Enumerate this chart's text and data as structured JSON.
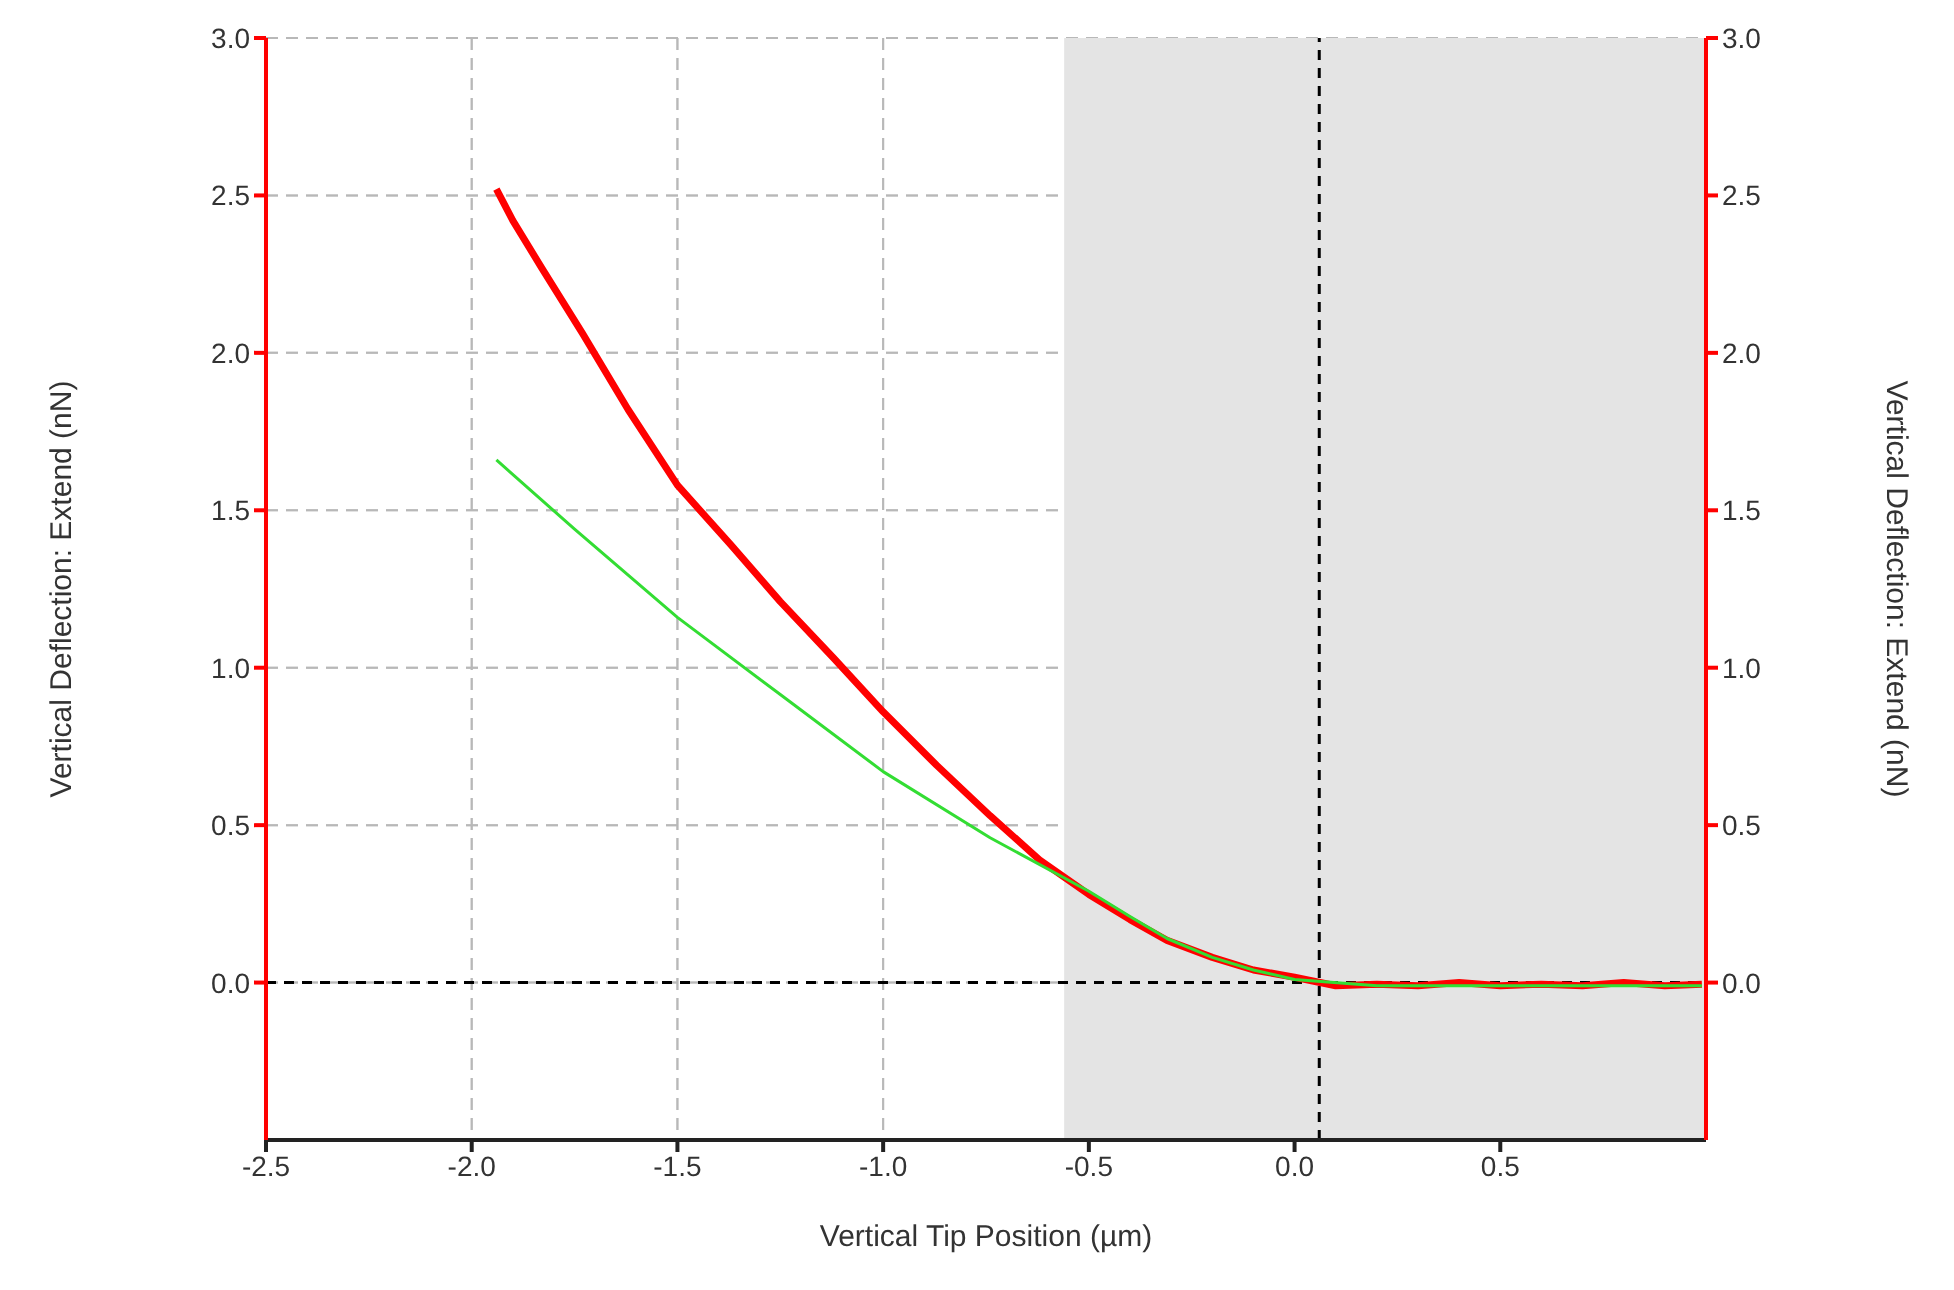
{
  "chart_data": {
    "type": "line",
    "xlabel": "Vertical Tip Position (µm)",
    "ylabel": "Vertical Deflection: Extend (nN)",
    "y2label": "Vertical Deflection: Extend (nN)",
    "series": [
      {
        "color": "#ff0000",
        "x": [
          -1.94,
          -1.9,
          -1.83,
          -1.73,
          -1.62,
          -1.5,
          -1.37,
          -1.25,
          -1.12,
          -1.0,
          -0.87,
          -0.74,
          -0.62,
          -0.5,
          -0.4,
          -0.31,
          -0.2,
          -0.1,
          0.0,
          0.1,
          0.2,
          0.3,
          0.4,
          0.5,
          0.6,
          0.7,
          0.8,
          0.9,
          0.99
        ],
        "values": [
          2.52,
          2.42,
          2.27,
          2.06,
          1.82,
          1.58,
          1.39,
          1.21,
          1.03,
          0.86,
          0.69,
          0.53,
          0.39,
          0.28,
          0.2,
          0.134,
          0.08,
          0.04,
          0.017,
          -0.01,
          -0.005,
          -0.01,
          0.0,
          -0.01,
          -0.005,
          -0.01,
          0.0,
          -0.01,
          -0.005
        ]
      },
      {
        "color": "#33dd33",
        "x": [
          -1.94,
          -1.75,
          -1.5,
          -1.25,
          -1.0,
          -0.74,
          -0.5,
          -0.4,
          -0.31,
          -0.2,
          -0.1,
          0.0,
          0.2,
          0.4,
          0.6,
          0.8,
          0.99
        ],
        "values": [
          1.66,
          1.44,
          1.16,
          0.915,
          0.67,
          0.46,
          0.29,
          0.21,
          0.14,
          0.08,
          0.04,
          0.01,
          -0.01,
          -0.01,
          -0.01,
          -0.01,
          -0.01
        ]
      }
    ],
    "xlim": [
      -2.5,
      1.0
    ],
    "xticks": [
      -2.5,
      {
        "value": -2,
        "label": "-2.0"
      },
      -1.5,
      {
        "value": -1,
        "label": "-1.0"
      },
      -0.5,
      {
        "value": 0,
        "label": "0.0"
      },
      0.5
    ],
    "ylim": [
      -0.5,
      3.0
    ],
    "yticks": [
      {
        "value": 0,
        "label": "0.0"
      },
      0.5,
      {
        "value": 1,
        "label": "1.0"
      },
      1.5,
      {
        "value": 2,
        "label": "2.0"
      },
      2.5,
      {
        "value": 3,
        "label": "3.0"
      }
    ],
    "y2lim": [
      -0.5,
      3.0
    ],
    "y2ticks": [
      {
        "value": 0,
        "label": "0.0"
      },
      0.5,
      {
        "value": 1,
        "label": "1.0"
      },
      1.5,
      {
        "value": 2,
        "label": "2.0"
      },
      2.5,
      {
        "value": 3,
        "label": "3.0"
      }
    ],
    "grid": true,
    "marker": "none",
    "line_style": "solid",
    "ref_lines": [
      {
        "axis": "y",
        "value": 0,
        "color": "#000000",
        "line_style": "dashed"
      },
      {
        "axis": "x",
        "value": 0.06,
        "color": "#000000",
        "line_style": "dashed"
      }
    ],
    "bands": [
      {
        "axis": "x",
        "from": -0.56,
        "to": 1.0,
        "color": "#e4e4e4"
      }
    ]
  }
}
